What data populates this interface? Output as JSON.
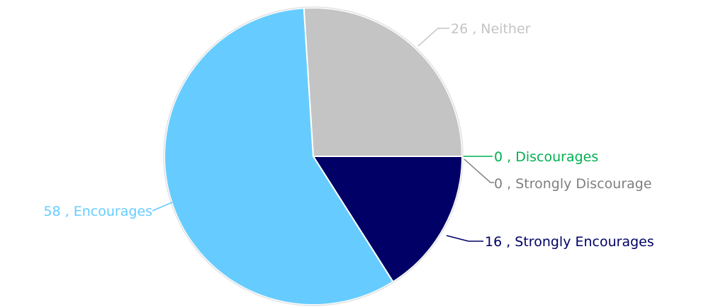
{
  "chart_data": {
    "type": "pie",
    "title": "",
    "start": "3 o'clock",
    "direction": "clockwise",
    "legend": "none",
    "slices": [
      {
        "label": "Discourages",
        "value": 0,
        "color": "#00b050",
        "text": "0 , Discourages"
      },
      {
        "label": "Strongly Discourages",
        "value": 0,
        "color": "#7f7f7f",
        "text": "0 , Strongly Discourage"
      },
      {
        "label": "Strongly Encourages",
        "value": 16,
        "color": "#000066",
        "text": "16 , Strongly Encourages"
      },
      {
        "label": "Encourages",
        "value": 58,
        "color": "#66ccff",
        "text": "58 , Encourages"
      },
      {
        "label": "Neither",
        "value": 26,
        "color": "#c4c4c4",
        "text": "26 , Neither"
      }
    ]
  }
}
